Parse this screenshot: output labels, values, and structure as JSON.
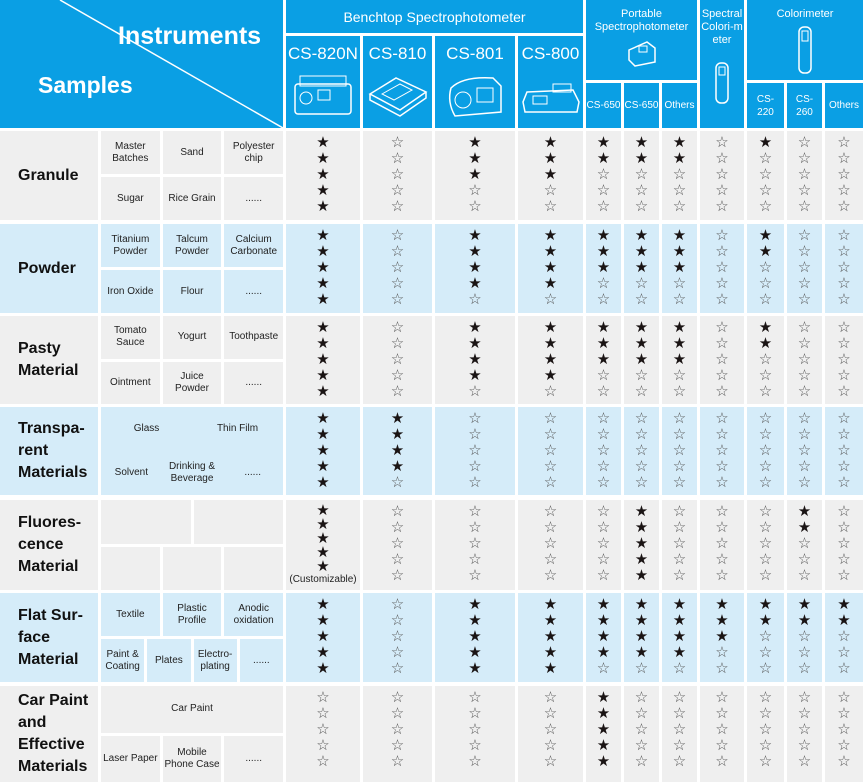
{
  "header": {
    "instruments": "Instruments",
    "samples": "Samples",
    "benchtop": "Benchtop Spectrophotometer",
    "portable": "Portable Spectrophotometer",
    "spectral": "Spectral Colori-meter",
    "colorimeter": "Colorimeter",
    "models": [
      "CS-820N",
      "CS-810",
      "CS-801",
      "CS-800"
    ],
    "portable_models": [
      "CS-650",
      "CS-650",
      "Others"
    ],
    "colorimeter_models": [
      "CS-220",
      "CS-260",
      "Others"
    ]
  },
  "groups": [
    {
      "name": "Granule",
      "rows": [
        [
          "Master Batches",
          "Sand",
          "Polyester chip"
        ],
        [
          "Sugar",
          "Rice Grain",
          "......"
        ]
      ],
      "ratings": [
        5,
        0,
        3,
        3,
        2,
        2,
        2,
        0,
        1,
        0,
        0
      ]
    },
    {
      "name": "Powder",
      "rows": [
        [
          "Titanium Powder",
          "Talcum Powder",
          "Calcium Carbonate"
        ],
        [
          "Iron Oxide",
          "Flour",
          "......"
        ]
      ],
      "ratings": [
        5,
        0,
        4,
        4,
        3,
        3,
        3,
        0,
        2,
        0,
        0
      ]
    },
    {
      "name": "Pasty Material",
      "rows": [
        [
          "Tomato Sauce",
          "Yogurt",
          "Toothpaste"
        ],
        [
          "Ointment",
          "Juice Powder",
          "......"
        ]
      ],
      "ratings": [
        5,
        0,
        4,
        4,
        3,
        3,
        3,
        0,
        2,
        0,
        0
      ]
    },
    {
      "name": "Transpa-rent Materials",
      "rows": [
        [
          "Glass",
          "Thin Film"
        ],
        [
          "Solvent",
          "Drinking & Beverage",
          "......"
        ]
      ],
      "ratings": [
        5,
        4,
        0,
        0,
        0,
        0,
        0,
        0,
        0,
        0,
        0
      ]
    },
    {
      "name": "Fluores-cence Material",
      "rows": [
        [
          "",
          ""
        ],
        [
          "",
          "",
          ""
        ]
      ],
      "ratings": [
        5,
        0,
        0,
        0,
        0,
        5,
        0,
        0,
        0,
        2,
        0
      ],
      "note": "(Customizable)"
    },
    {
      "name": "Flat Sur-face Material",
      "rows": [
        [
          "Textile",
          "Plastic Profile",
          "Anodic oxidation"
        ],
        [
          "Paint & Coating",
          "Plates",
          "Electro-plating",
          "......"
        ]
      ],
      "ratings": [
        5,
        0,
        5,
        5,
        4,
        4,
        4,
        3,
        2,
        2,
        2
      ]
    },
    {
      "name": "Car Paint and Effective Materials",
      "rows": [
        [
          "Car Paint"
        ],
        [
          "Laser Paper",
          "Mobile Phone Case",
          "......"
        ]
      ],
      "ratings": [
        0,
        0,
        0,
        0,
        5,
        0,
        0,
        0,
        0,
        0,
        0
      ]
    }
  ],
  "max_rating": 5,
  "colors": {
    "header": "#0a9fe4",
    "grey": "#efefef",
    "blue": "#d5ecf9"
  }
}
